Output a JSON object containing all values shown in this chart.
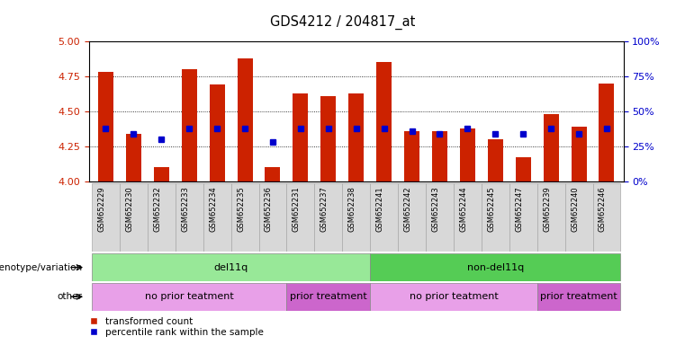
{
  "title": "GDS4212 / 204817_at",
  "samples": [
    "GSM652229",
    "GSM652230",
    "GSM652232",
    "GSM652233",
    "GSM652234",
    "GSM652235",
    "GSM652236",
    "GSM652231",
    "GSM652237",
    "GSM652238",
    "GSM652241",
    "GSM652242",
    "GSM652243",
    "GSM652244",
    "GSM652245",
    "GSM652247",
    "GSM652239",
    "GSM652240",
    "GSM652246"
  ],
  "bar_heights": [
    4.78,
    4.34,
    4.1,
    4.8,
    4.69,
    4.88,
    4.1,
    4.63,
    4.61,
    4.63,
    4.85,
    4.36,
    4.36,
    4.38,
    4.3,
    4.17,
    4.48,
    4.39,
    4.7
  ],
  "blue_y": [
    4.375,
    4.34,
    4.3,
    4.375,
    4.375,
    4.375,
    4.28,
    4.375,
    4.375,
    4.375,
    4.375,
    4.36,
    4.34,
    4.375,
    4.34,
    4.34,
    4.375,
    4.34,
    4.375
  ],
  "ylim_left": [
    4.0,
    5.0
  ],
  "ylim_right": [
    0,
    100
  ],
  "yticks_left": [
    4.0,
    4.25,
    4.5,
    4.75,
    5.0
  ],
  "yticks_right": [
    0,
    25,
    50,
    75,
    100
  ],
  "genotype_groups": [
    {
      "label": "del11q",
      "start": 0,
      "end": 10,
      "color": "#98E898"
    },
    {
      "label": "non-del11q",
      "start": 10,
      "end": 19,
      "color": "#55CC55"
    }
  ],
  "other_groups": [
    {
      "label": "no prior teatment",
      "start": 0,
      "end": 7,
      "color": "#E8A0E8"
    },
    {
      "label": "prior treatment",
      "start": 7,
      "end": 10,
      "color": "#CC66CC"
    },
    {
      "label": "no prior teatment",
      "start": 10,
      "end": 16,
      "color": "#E8A0E8"
    },
    {
      "label": "prior treatment",
      "start": 16,
      "end": 19,
      "color": "#CC66CC"
    }
  ],
  "bar_color": "#CC2200",
  "blue_color": "#0000CC",
  "background_color": "#FFFFFF",
  "tick_label_color_left": "#CC2200",
  "tick_label_color_right": "#0000CC",
  "bar_width": 0.55
}
